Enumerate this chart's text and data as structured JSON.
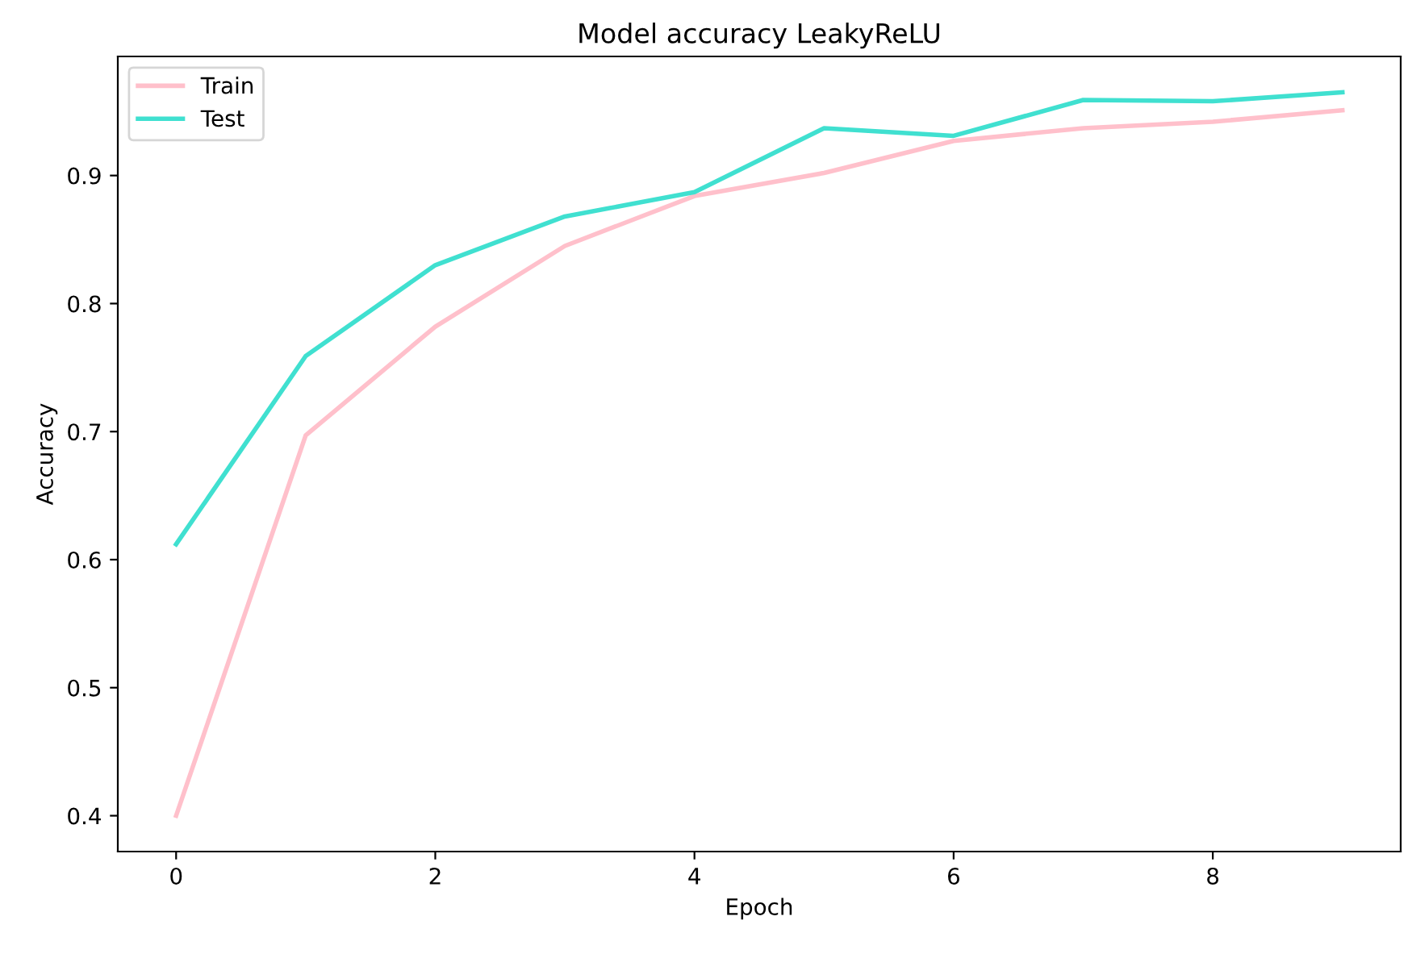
{
  "chart_data": {
    "type": "line",
    "title": "Model accuracy LeakyReLU",
    "xlabel": "Epoch",
    "ylabel": "Accuracy",
    "x": [
      0,
      1,
      2,
      3,
      4,
      5,
      6,
      7,
      8,
      9
    ],
    "series": [
      {
        "name": "Train",
        "color": "#ffc0cb",
        "values": [
          0.4,
          0.697,
          0.782,
          0.845,
          0.884,
          0.902,
          0.927,
          0.937,
          0.942,
          0.951
        ]
      },
      {
        "name": "Test",
        "color": "#40e0d0",
        "values": [
          0.612,
          0.759,
          0.83,
          0.868,
          0.887,
          0.937,
          0.931,
          0.959,
          0.958,
          0.965
        ]
      }
    ],
    "xlim": [
      -0.45,
      9.45
    ],
    "xticks": [
      0,
      2,
      4,
      6,
      8
    ],
    "ylim": [
      0.372,
      0.993
    ],
    "yticks": [
      0.4,
      0.5,
      0.6,
      0.7,
      0.8,
      0.9
    ],
    "legend": "top left",
    "grid": false
  }
}
